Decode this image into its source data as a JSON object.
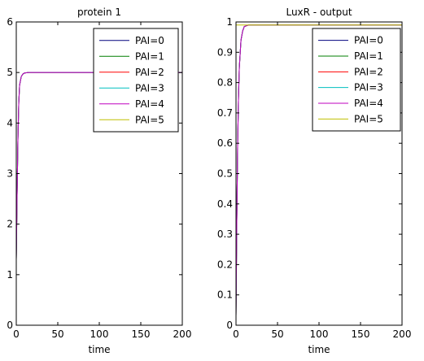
{
  "chart_data": [
    {
      "type": "line",
      "title": "protein 1",
      "xlabel": "time",
      "ylabel": "",
      "xlim": [
        0,
        200
      ],
      "ylim": [
        0,
        6
      ],
      "xticks": [
        "0",
        "50",
        "100",
        "150",
        "200"
      ],
      "yticks": [
        "0",
        "1",
        "2",
        "3",
        "4",
        "5",
        "6"
      ],
      "legend_position": "top-right",
      "series": [
        {
          "name": "PAI=0",
          "color": "#00007f",
          "x": [
            0,
            1,
            2,
            3,
            4,
            6,
            8,
            10,
            15,
            20,
            50,
            100,
            150,
            200
          ],
          "y": [
            1.3,
            2.6,
            3.7,
            4.4,
            4.75,
            4.92,
            4.97,
            4.99,
            5.0,
            5.0,
            5.0,
            5.0,
            5.0,
            5.0
          ]
        },
        {
          "name": "PAI=1",
          "color": "#007f00",
          "x": [
            0,
            1,
            2,
            3,
            4,
            6,
            8,
            10,
            15,
            20,
            50,
            100,
            150,
            200
          ],
          "y": [
            1.3,
            2.6,
            3.7,
            4.4,
            4.75,
            4.92,
            4.97,
            4.99,
            5.0,
            5.0,
            5.0,
            5.0,
            5.0,
            5.0
          ]
        },
        {
          "name": "PAI=2",
          "color": "#ff0000",
          "x": [
            0,
            1,
            2,
            3,
            4,
            6,
            8,
            10,
            15,
            20,
            50,
            100,
            150,
            200
          ],
          "y": [
            1.3,
            2.6,
            3.7,
            4.4,
            4.75,
            4.92,
            4.97,
            4.99,
            5.0,
            5.0,
            5.0,
            5.0,
            5.0,
            5.0
          ]
        },
        {
          "name": "PAI=3",
          "color": "#00bfbf",
          "x": [
            0,
            1,
            2,
            3,
            4,
            6,
            8,
            10,
            15,
            20,
            50,
            100,
            150,
            200
          ],
          "y": [
            1.3,
            2.6,
            3.7,
            4.4,
            4.75,
            4.92,
            4.97,
            4.99,
            5.0,
            5.0,
            5.0,
            5.0,
            5.0,
            5.0
          ]
        },
        {
          "name": "PAI=4",
          "color": "#bf00bf",
          "x": [
            0,
            1,
            2,
            3,
            4,
            6,
            8,
            10,
            15,
            20,
            50,
            100,
            150,
            200
          ],
          "y": [
            1.3,
            2.6,
            3.7,
            4.4,
            4.75,
            4.92,
            4.97,
            4.99,
            5.0,
            5.0,
            5.0,
            5.0,
            5.0,
            5.0
          ]
        },
        {
          "name": "PAI=5",
          "color": "#bfbf00",
          "x": [
            0,
            200
          ],
          "y": [
            0,
            0
          ]
        }
      ]
    },
    {
      "type": "line",
      "title": "LuxR - output",
      "xlabel": "time",
      "ylabel": "",
      "xlim": [
        0,
        200
      ],
      "ylim": [
        0,
        1
      ],
      "xticks": [
        "0",
        "50",
        "100",
        "150",
        "200"
      ],
      "yticks": [
        "0",
        "0.1",
        "0.2",
        "0.3",
        "0.4",
        "0.5",
        "0.6",
        "0.7",
        "0.8",
        "0.9",
        "1"
      ],
      "legend_position": "top-right",
      "series": [
        {
          "name": "PAI=0",
          "color": "#00007f",
          "x": [
            0,
            1,
            2,
            3,
            4,
            6,
            8,
            10,
            15,
            20,
            50,
            100,
            150,
            200
          ],
          "y": [
            0.03,
            0.35,
            0.6,
            0.75,
            0.85,
            0.94,
            0.97,
            0.985,
            0.99,
            0.99,
            0.99,
            0.99,
            0.99,
            0.99
          ]
        },
        {
          "name": "PAI=1",
          "color": "#007f00",
          "x": [
            0,
            1,
            2,
            3,
            4,
            6,
            8,
            10,
            15,
            20,
            50,
            100,
            150,
            200
          ],
          "y": [
            0.03,
            0.35,
            0.6,
            0.75,
            0.85,
            0.94,
            0.97,
            0.985,
            0.99,
            0.99,
            0.99,
            0.99,
            0.99,
            0.99
          ]
        },
        {
          "name": "PAI=2",
          "color": "#ff0000",
          "x": [
            0,
            1,
            2,
            3,
            4,
            6,
            8,
            10,
            15,
            20,
            50,
            100,
            150,
            200
          ],
          "y": [
            0.03,
            0.35,
            0.6,
            0.75,
            0.85,
            0.94,
            0.97,
            0.985,
            0.99,
            0.99,
            0.99,
            0.99,
            0.99,
            0.99
          ]
        },
        {
          "name": "PAI=3",
          "color": "#00bfbf",
          "x": [
            0,
            1,
            2,
            3,
            4,
            6,
            8,
            10,
            15,
            20,
            50,
            100,
            150,
            200
          ],
          "y": [
            0.03,
            0.35,
            0.6,
            0.75,
            0.85,
            0.94,
            0.97,
            0.985,
            0.99,
            0.99,
            0.99,
            0.99,
            0.99,
            0.99
          ]
        },
        {
          "name": "PAI=4",
          "color": "#bf00bf",
          "x": [
            0,
            1,
            2,
            3,
            4,
            6,
            8,
            10,
            15,
            20,
            50,
            100,
            150,
            200
          ],
          "y": [
            0.03,
            0.35,
            0.6,
            0.75,
            0.85,
            0.94,
            0.97,
            0.985,
            0.99,
            0.99,
            0.99,
            0.99,
            0.99,
            0.99
          ]
        },
        {
          "name": "PAI=5",
          "color": "#bfbf00",
          "x": [
            0,
            200
          ],
          "y": [
            0.99,
            0.99
          ]
        }
      ]
    }
  ]
}
